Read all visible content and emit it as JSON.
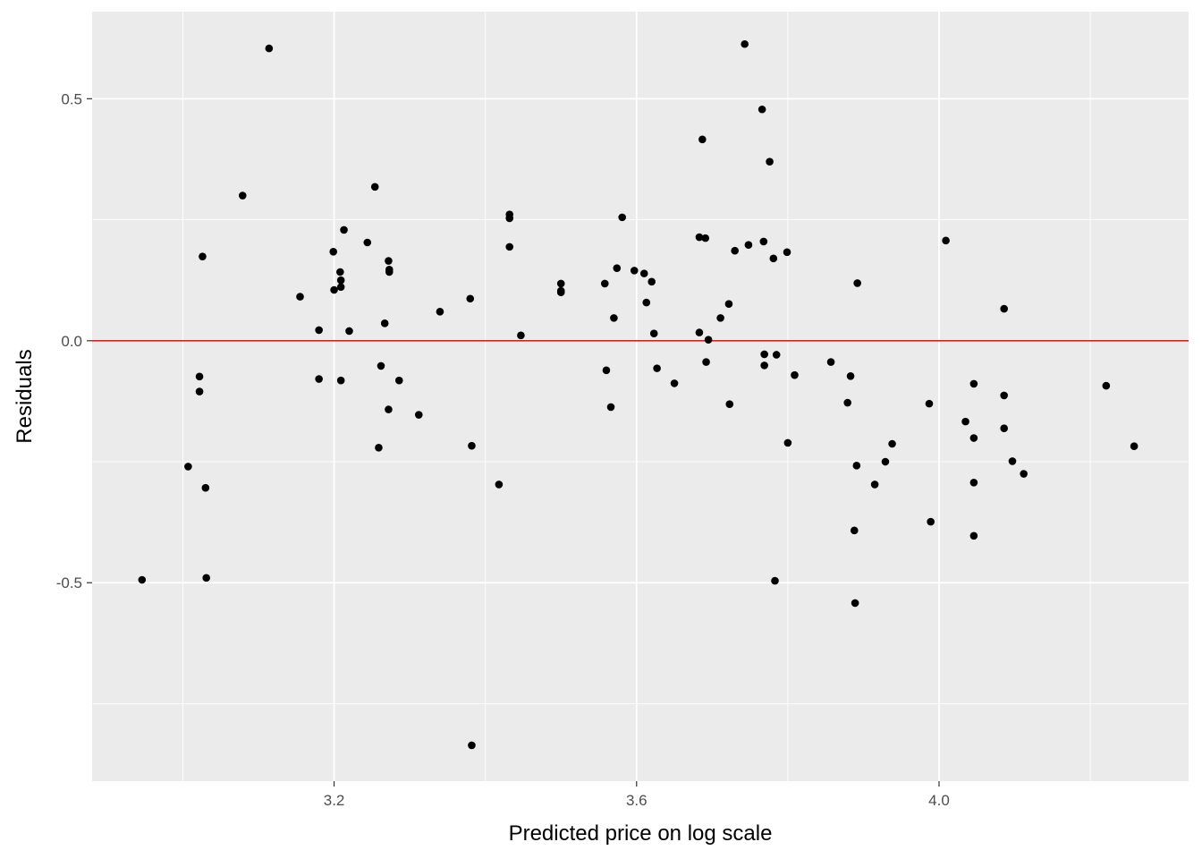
{
  "chart_data": {
    "type": "scatter",
    "title": "",
    "xlabel": "Predicted price on log scale",
    "ylabel": "Residuals",
    "xlim": [
      2.88,
      4.33
    ],
    "ylim": [
      -0.91,
      0.68
    ],
    "x_ticks": [
      3.2,
      3.6,
      4.0
    ],
    "x_tick_labels": [
      "3.2",
      "3.6",
      "4.0"
    ],
    "x_minor_ticks": [
      3.0,
      3.4,
      3.8,
      4.2
    ],
    "y_ticks": [
      0.5,
      0.0,
      -0.5
    ],
    "y_tick_labels": [
      "0.5",
      "0.0",
      "-0.5"
    ],
    "y_minor_ticks": [
      0.25,
      -0.25,
      -0.75
    ],
    "grid": true,
    "panel_color": "#EBEBEB",
    "grid_color": "#FFFFFF",
    "point_color": "#000000",
    "reference_line": {
      "y": 0,
      "color": "#E41A1C"
    },
    "points": [
      [
        2.946,
        -0.494
      ],
      [
        3.007,
        -0.26
      ],
      [
        3.022,
        -0.074
      ],
      [
        3.022,
        -0.105
      ],
      [
        3.026,
        0.174
      ],
      [
        3.03,
        -0.304
      ],
      [
        3.031,
        -0.49
      ],
      [
        3.079,
        0.3
      ],
      [
        3.114,
        0.604
      ],
      [
        3.155,
        0.091
      ],
      [
        3.18,
        0.022
      ],
      [
        3.18,
        -0.079
      ],
      [
        3.199,
        0.184
      ],
      [
        3.2,
        0.105
      ],
      [
        3.208,
        0.142
      ],
      [
        3.209,
        0.125
      ],
      [
        3.209,
        0.111
      ],
      [
        3.209,
        -0.082
      ],
      [
        3.213,
        0.229
      ],
      [
        3.22,
        0.02
      ],
      [
        3.244,
        0.203
      ],
      [
        3.254,
        0.318
      ],
      [
        3.259,
        -0.221
      ],
      [
        3.262,
        -0.052
      ],
      [
        3.267,
        0.036
      ],
      [
        3.272,
        0.165
      ],
      [
        3.273,
        0.142
      ],
      [
        3.273,
        0.147
      ],
      [
        3.272,
        -0.142
      ],
      [
        3.286,
        -0.082
      ],
      [
        3.312,
        -0.153
      ],
      [
        3.34,
        0.06
      ],
      [
        3.38,
        0.087
      ],
      [
        3.382,
        -0.217
      ],
      [
        3.382,
        -0.836
      ],
      [
        3.418,
        -0.297
      ],
      [
        3.432,
        0.261
      ],
      [
        3.432,
        0.253
      ],
      [
        3.432,
        0.194
      ],
      [
        3.447,
        0.011
      ],
      [
        3.5,
        0.118
      ],
      [
        3.5,
        0.103
      ],
      [
        3.5,
        0.1
      ],
      [
        3.558,
        0.118
      ],
      [
        3.56,
        -0.061
      ],
      [
        3.566,
        -0.137
      ],
      [
        3.57,
        0.047
      ],
      [
        3.574,
        0.15
      ],
      [
        3.581,
        0.255
      ],
      [
        3.597,
        0.145
      ],
      [
        3.61,
        0.139
      ],
      [
        3.613,
        0.079
      ],
      [
        3.62,
        0.122
      ],
      [
        3.623,
        0.015
      ],
      [
        3.627,
        -0.057
      ],
      [
        3.65,
        -0.088
      ],
      [
        3.683,
        0.214
      ],
      [
        3.683,
        0.017
      ],
      [
        3.687,
        0.416
      ],
      [
        3.691,
        0.212
      ],
      [
        3.692,
        -0.044
      ],
      [
        3.695,
        0.002
      ],
      [
        3.711,
        0.047
      ],
      [
        3.722,
        0.076
      ],
      [
        3.723,
        -0.131
      ],
      [
        3.73,
        0.186
      ],
      [
        3.743,
        0.613
      ],
      [
        3.748,
        0.198
      ],
      [
        3.766,
        0.478
      ],
      [
        3.768,
        0.205
      ],
      [
        3.769,
        -0.028
      ],
      [
        3.769,
        -0.051
      ],
      [
        3.776,
        0.37
      ],
      [
        3.781,
        0.17
      ],
      [
        3.783,
        -0.496
      ],
      [
        3.785,
        -0.029
      ],
      [
        3.799,
        0.183
      ],
      [
        3.8,
        -0.211
      ],
      [
        3.809,
        -0.071
      ],
      [
        3.857,
        -0.044
      ],
      [
        3.879,
        -0.128
      ],
      [
        3.883,
        -0.073
      ],
      [
        3.888,
        -0.392
      ],
      [
        3.889,
        -0.542
      ],
      [
        3.891,
        -0.258
      ],
      [
        3.892,
        0.119
      ],
      [
        3.915,
        -0.297
      ],
      [
        3.929,
        -0.25
      ],
      [
        3.938,
        -0.213
      ],
      [
        3.987,
        -0.13
      ],
      [
        3.989,
        -0.374
      ],
      [
        4.009,
        0.207
      ],
      [
        4.035,
        -0.167
      ],
      [
        4.046,
        -0.089
      ],
      [
        4.046,
        -0.201
      ],
      [
        4.046,
        -0.293
      ],
      [
        4.046,
        -0.403
      ],
      [
        4.086,
        0.066
      ],
      [
        4.086,
        -0.113
      ],
      [
        4.086,
        -0.181
      ],
      [
        4.097,
        -0.249
      ],
      [
        4.112,
        -0.275
      ],
      [
        4.221,
        -0.093
      ],
      [
        4.258,
        -0.218
      ]
    ]
  }
}
